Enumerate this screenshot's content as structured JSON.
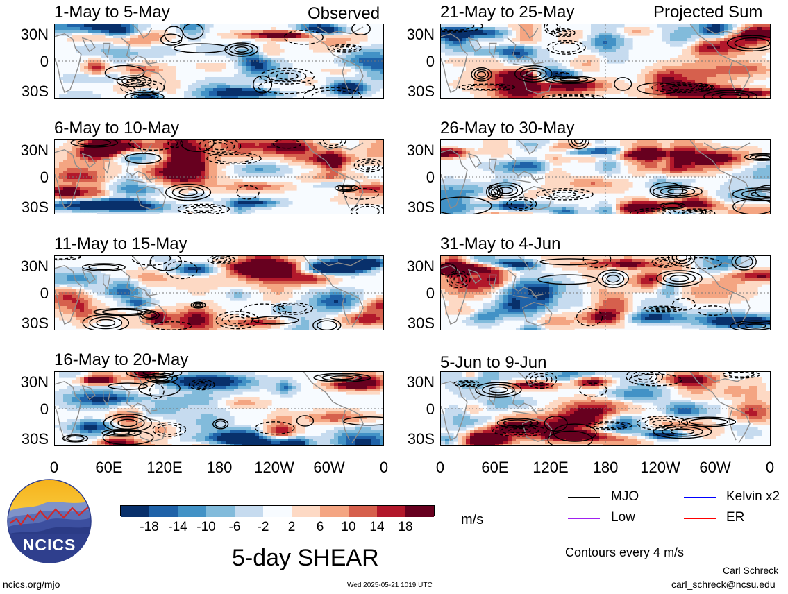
{
  "header": {
    "observed_label": "Observed",
    "projected_label": "Projected Sum"
  },
  "panels": [
    {
      "title": "1-May to 5-May"
    },
    {
      "title": "6-May to 10-May"
    },
    {
      "title": "11-May to 15-May"
    },
    {
      "title": "16-May to 20-May"
    },
    {
      "title": "21-May to 25-May"
    },
    {
      "title": "26-May to 30-May"
    },
    {
      "title": "31-May to 4-Jun"
    },
    {
      "title": "5-Jun to 9-Jun"
    }
  ],
  "axes": {
    "y_ticks": [
      "30N",
      "0",
      "30S"
    ],
    "x_ticks": [
      "0",
      "60E",
      "120E",
      "180",
      "120W",
      "60W",
      "0"
    ]
  },
  "chart_data": {
    "type": "heatmap",
    "title": "5-day SHEAR",
    "units": "m/s",
    "lat_range": [
      "30S",
      "30N"
    ],
    "lon_range": [
      "0",
      "0"
    ],
    "colorbar": {
      "levels": [
        -18,
        -14,
        -10,
        -6,
        -2,
        2,
        6,
        10,
        14,
        18
      ],
      "tick_labels": [
        "-18",
        "-14",
        "-10",
        "-6",
        "-2",
        "2",
        "6",
        "10",
        "14",
        "18"
      ],
      "colors": [
        "#08306b",
        "#1f62a8",
        "#4292c6",
        "#82bbdb",
        "#c6dbef",
        "#f7fbff",
        "#fdd9c4",
        "#f4a582",
        "#d6604d",
        "#b2182b",
        "#67001f"
      ]
    },
    "contour_note": "Contours every 4 m/s",
    "contour_legend": [
      {
        "name": "MJO",
        "color": "#000000"
      },
      {
        "name": "Kelvin x2",
        "color": "#0000ff"
      },
      {
        "name": "Low",
        "color": "#a020f0"
      },
      {
        "name": "ER",
        "color": "#ff0000"
      }
    ]
  },
  "logo": {
    "text": "NCICS"
  },
  "footer": {
    "url": "ncics.org/mjo",
    "timestamp": "Wed 2025-05-21 1019 UTC",
    "author": "Carl Schreck",
    "email": "carl_schreck@ncsu.edu"
  }
}
